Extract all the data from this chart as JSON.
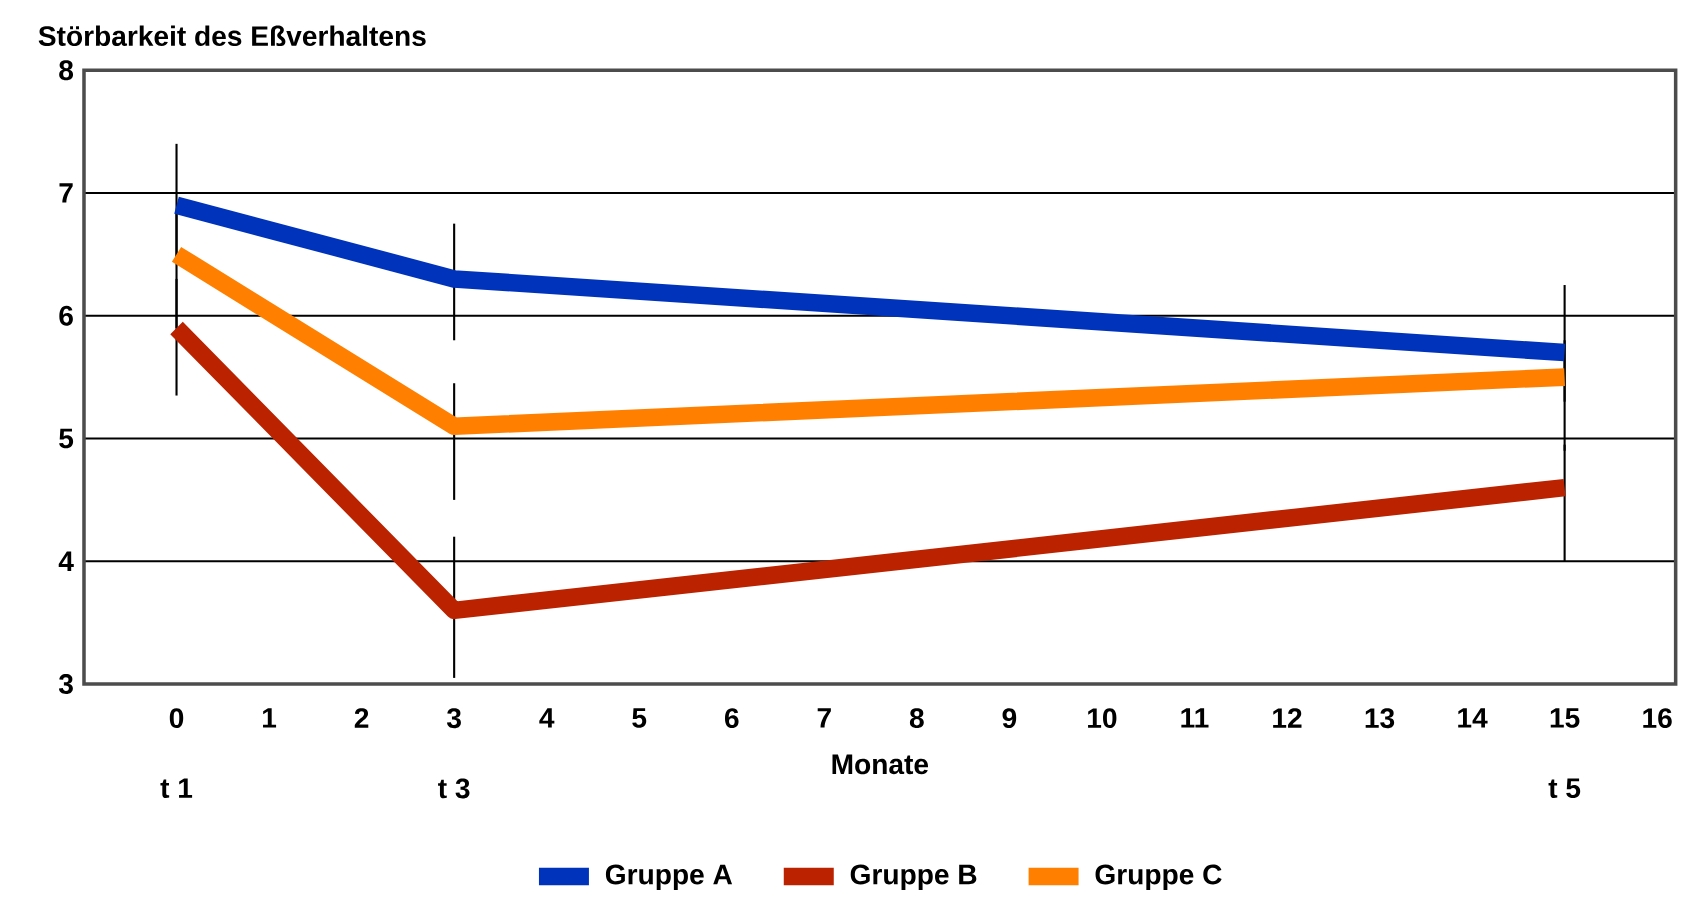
{
  "chart_data": {
    "type": "line",
    "title": "Störbarkeit des Eßverhaltens",
    "xlabel": "Monate",
    "x": [
      0,
      3,
      15
    ],
    "xlim": [
      -1,
      16.2
    ],
    "xticks": [
      0,
      1,
      2,
      3,
      4,
      5,
      6,
      7,
      8,
      9,
      10,
      11,
      12,
      13,
      14,
      15,
      16
    ],
    "ylim": [
      3,
      8
    ],
    "yticks": [
      3,
      4,
      5,
      6,
      7,
      8
    ],
    "grid": "y",
    "legend": "bottom",
    "marker": "none",
    "line_style": "solid",
    "series": [
      {
        "name": "Gruppe A",
        "color": "#0033bb",
        "values": [
          6.9,
          6.3,
          5.7
        ],
        "errors": [
          [
            6.45,
            7.4
          ],
          [
            5.8,
            6.75
          ],
          [
            5.3,
            6.25
          ]
        ]
      },
      {
        "name": "Gruppe B",
        "color": "#bb2200",
        "values": [
          5.9,
          3.6,
          4.6
        ],
        "errors": [
          [
            5.35,
            6.3
          ],
          [
            3.05,
            4.2
          ],
          [
            4.0,
            4.95
          ]
        ]
      },
      {
        "name": "Gruppe C",
        "color": "#ff8000",
        "values": [
          6.5,
          5.1,
          5.5
        ],
        "errors": [
          [
            5.9,
            6.85
          ],
          [
            4.5,
            5.45
          ],
          [
            4.9,
            5.8
          ]
        ]
      }
    ],
    "annotations": [
      "t 1",
      "t 3",
      "t 5"
    ]
  }
}
